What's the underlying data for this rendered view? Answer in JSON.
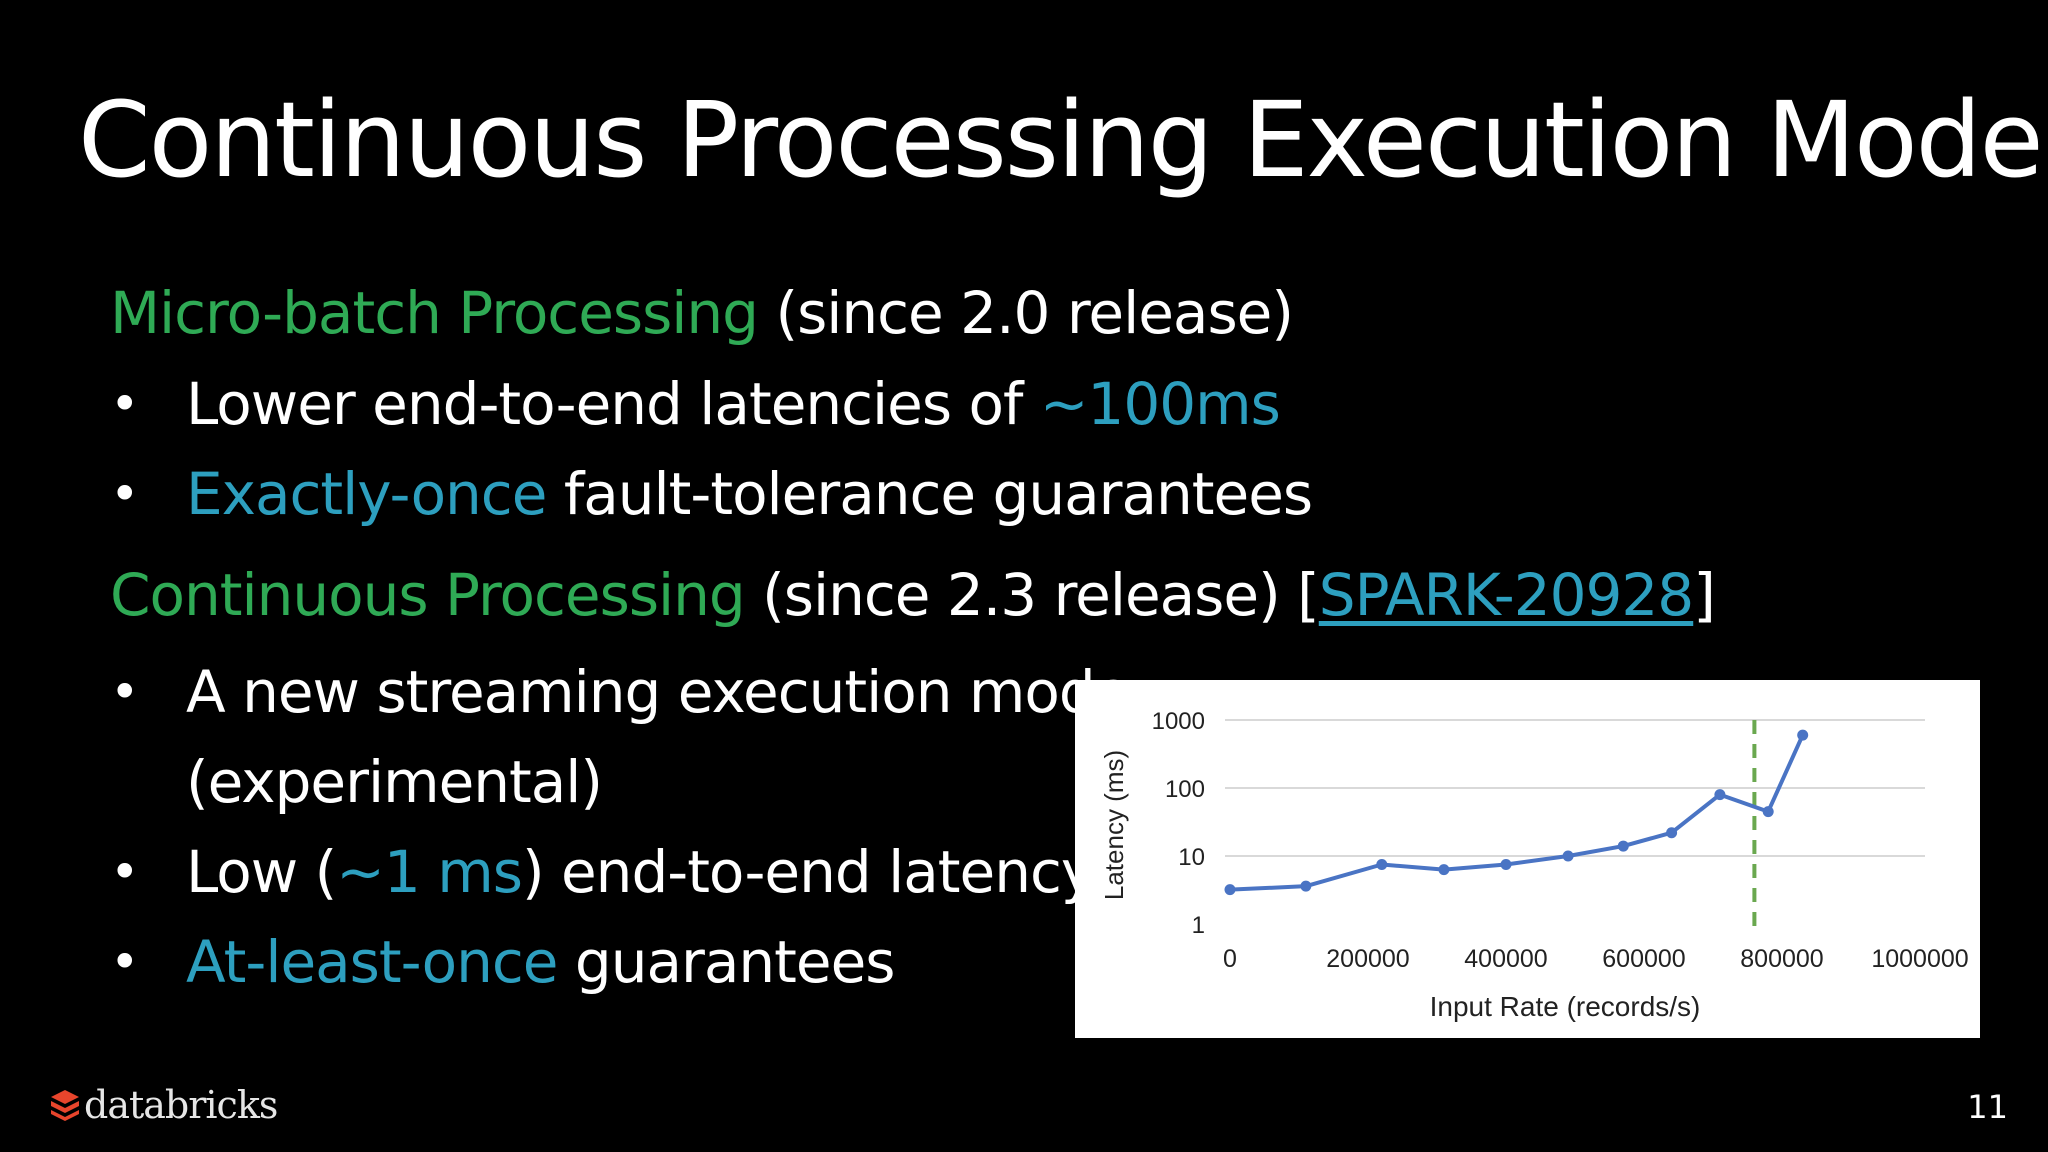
{
  "slide": {
    "title": "Continuous Processing Execution Mode",
    "page_number": "11",
    "logo_text": "databricks",
    "colors": {
      "green": "#2faa55",
      "teal": "#2d9fbf",
      "series": "#4a74c4",
      "threshold": "#6aa84f"
    }
  },
  "section1": {
    "heading_green": "Micro-batch Processing",
    "heading_rest": " (since 2.0 release)",
    "bullets": [
      {
        "before": "Lower end-to-end latencies of ",
        "highlight": "~100ms",
        "after": ""
      },
      {
        "before": "",
        "highlight": "Exactly-once",
        "after": " fault-tolerance guarantees"
      }
    ]
  },
  "section2": {
    "heading_green": "Continuous Processing",
    "heading_rest": " (since 2.3 release) [",
    "link_text": "SPARK-20928",
    "heading_end": "]",
    "bullets": [
      {
        "line1": "A new streaming execution mode",
        "line2": "(experimental)"
      },
      {
        "before": "Low (",
        "highlight": "~1 ms",
        "after": ") end-to-end latency"
      },
      {
        "before": "",
        "highlight": "At-least-once",
        "after": " guarantees"
      }
    ]
  },
  "bullet_char": "•",
  "chart_data": {
    "type": "line",
    "xlabel": "Input Rate (records/s)",
    "ylabel": "Latency (ms)",
    "x_ticks": [
      "0",
      "200000",
      "400000",
      "600000",
      "800000",
      "1000000"
    ],
    "y_ticks": [
      "1",
      "10",
      "100",
      "1000"
    ],
    "xlim": [
      0,
      1000000
    ],
    "ylim": [
      1,
      1000
    ],
    "y_scale": "log",
    "grid": "horizontal",
    "points": [
      {
        "x": 0,
        "y": 3.2
      },
      {
        "x": 110000,
        "y": 3.6
      },
      {
        "x": 220000,
        "y": 7.5
      },
      {
        "x": 310000,
        "y": 6.3
      },
      {
        "x": 400000,
        "y": 7.5
      },
      {
        "x": 490000,
        "y": 10
      },
      {
        "x": 570000,
        "y": 14
      },
      {
        "x": 640000,
        "y": 22
      },
      {
        "x": 710000,
        "y": 80
      },
      {
        "x": 780000,
        "y": 45
      },
      {
        "x": 830000,
        "y": 600
      }
    ],
    "threshold_x": 760000
  }
}
